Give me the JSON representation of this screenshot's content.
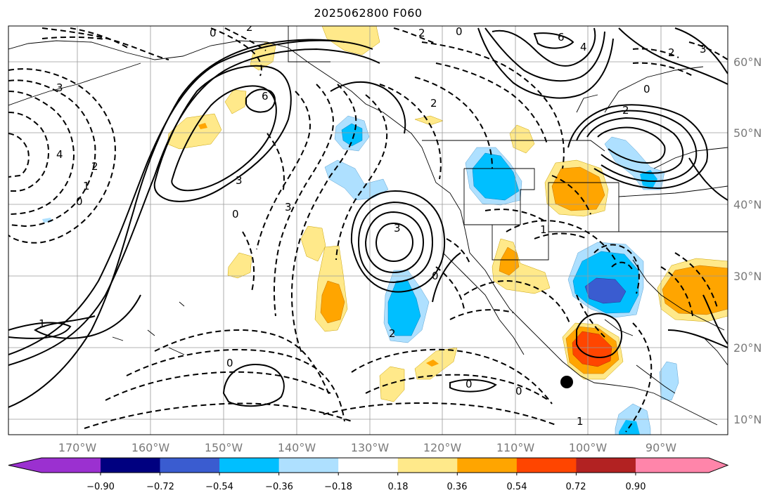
{
  "title": "2025062800 F060",
  "longitude_labels": [
    "170°W",
    "160°W",
    "150°W",
    "140°W",
    "130°W",
    "120°W",
    "110°W",
    "100°W",
    "90°W"
  ],
  "latitude_labels": [
    "60°N",
    "50°N",
    "40°N",
    "30°N",
    "20°N",
    "10°N"
  ],
  "colorbar": {
    "colors": [
      "#9b30d0",
      "#000080",
      "#3a5cd0",
      "#00bfff",
      "#aee0ff",
      "#ffffff",
      "#ffe98a",
      "#ffa500",
      "#ff4500",
      "#b22222",
      "#ff85aa"
    ],
    "tick_labels": [
      "−0.90",
      "−0.72",
      "−0.54",
      "−0.36",
      "−0.18",
      "0.18",
      "0.36",
      "0.54",
      "0.72",
      "0.90"
    ]
  },
  "contour_labels": [
    "1",
    "3",
    "4",
    "6",
    "2",
    "0",
    "3",
    "2",
    "0",
    "6",
    "2",
    "0",
    "3",
    "0",
    "2",
    "3",
    "1",
    "0",
    "1",
    "0",
    "0",
    "0",
    "1",
    "2",
    "0",
    "4",
    "2",
    "3",
    "2"
  ],
  "marker": {
    "label": "location-dot"
  }
}
